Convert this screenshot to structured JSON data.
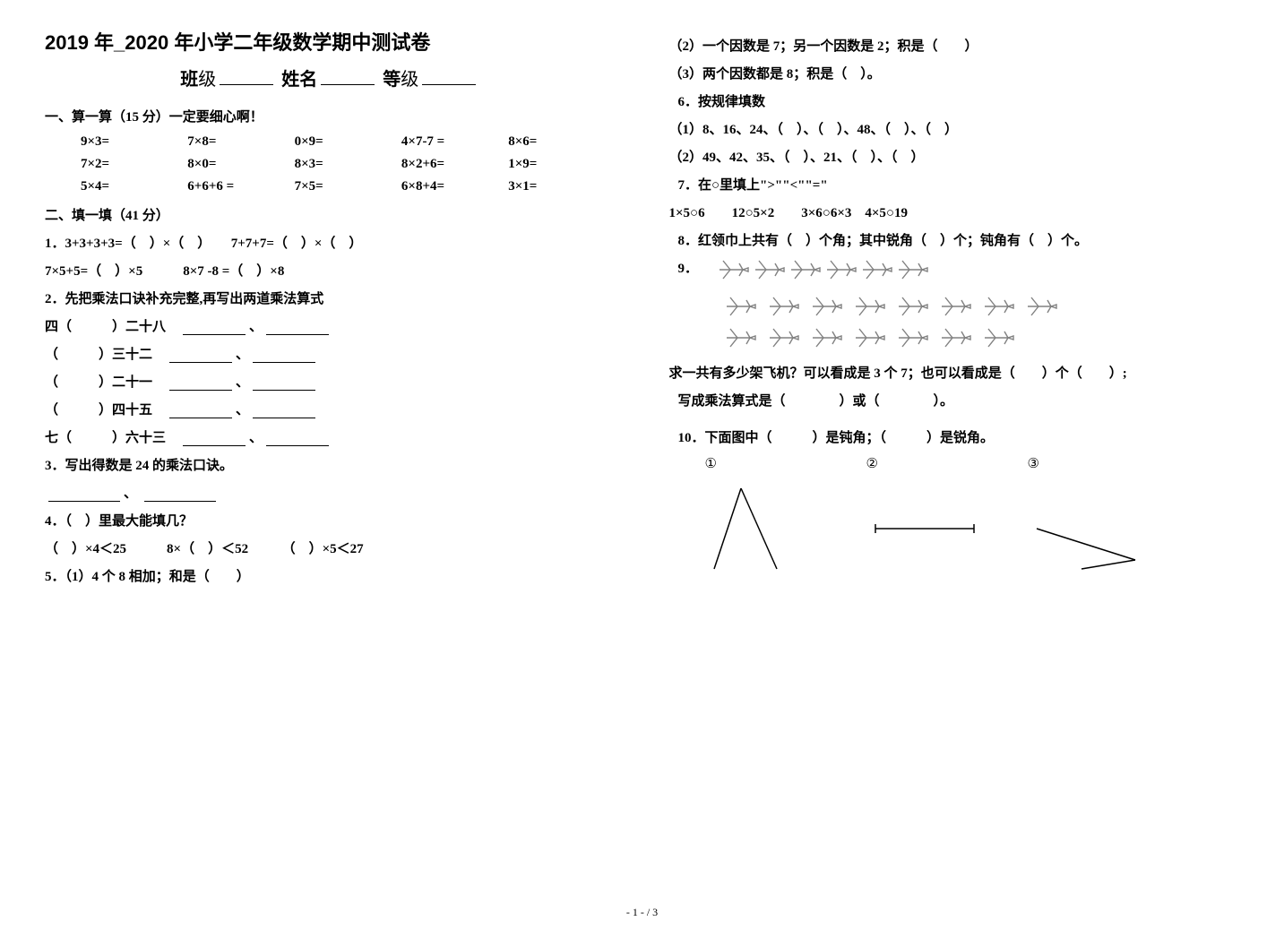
{
  "title": "2019 年_2020 年小学二年级数学期中测试卷",
  "header": {
    "class_label": "班",
    "class_suffix": "级",
    "name_label": "姓名",
    "grade_label": "等",
    "grade_suffix": "级"
  },
  "sec1": {
    "head": "一、算一算（15 分）一定要细心啊！",
    "rows": [
      [
        "9×3=",
        "7×8=",
        "0×9=",
        "4×7-7 =",
        "8×6="
      ],
      [
        "7×2=",
        "8×0=",
        "8×3=",
        "8×2+6=",
        "1×9="
      ],
      [
        "5×4=",
        "6+6+6 =",
        "7×5=",
        "6×8+4=",
        "3×1="
      ]
    ]
  },
  "sec2": {
    "head": "二、填一填（41 分）",
    "q1_a": "1．3+3+3+3=（　）×（　）　　7+7+7=（　）×（　）",
    "q1_b": "7×5+5=（　）×5　　　8×7 -8 =（　）×8",
    "q2_head": "2．先把乘法口诀补充完整,再写出两道乘法算式",
    "q2_items": [
      "四（　　　）二十八",
      "（　　　）三十二",
      "（　　　）二十一",
      "（　　　）四十五",
      "七（　　　）六十三"
    ],
    "q3": "3．写出得数是 24 的乘法口诀。",
    "q4": "4．（　）里最大能填几？",
    "q4_b": "（　）×4＜25　　　8×（　）＜52　　　（　）×5＜27",
    "q5_1": "5．（1）4 个 8 相加；和是（　　）",
    "q5_2": "（2）一个因数是 7；另一个因数是 2；积是（　　）",
    "q5_3": "（3）两个因数都是 8；积是（　）。",
    "q6_head": "6．按规律填数",
    "q6_1": "（1）8、16、24、（　）、（　）、48、（　）、（　）",
    "q6_2": "（2）49、42、35、（　）、21、（　）、（　）",
    "q7_head": "7．在○里填上\">\"\"<\"\"=\"",
    "q7_line": "1×5○6　　12○5×2　　3×6○6×3　4×5○19",
    "q8": "8．红领巾上共有（　）个角；其中锐角（　）个；钝角有（　）个。",
    "q9_label": "9．",
    "q9_text_a": "求一共有多少架飞机？可以看成是 3 个 7；也可以看成是（　　）个（　　）;",
    "q9_text_b": "写成乘法算式是（　　　　）或（　　　　）。",
    "q10_head": "10．下面图中（　　　）是钝角；（　　　）是锐角。",
    "q10_nums": [
      "①",
      "②",
      "③"
    ]
  },
  "planes": {
    "rows": [
      6,
      8,
      7
    ],
    "color": "#808080"
  },
  "angles": {
    "acute": {
      "stroke": "#000000"
    },
    "right_seg": {
      "stroke": "#000000"
    },
    "obtuse": {
      "stroke": "#000000"
    }
  },
  "footer": "- 1 -  /  3"
}
